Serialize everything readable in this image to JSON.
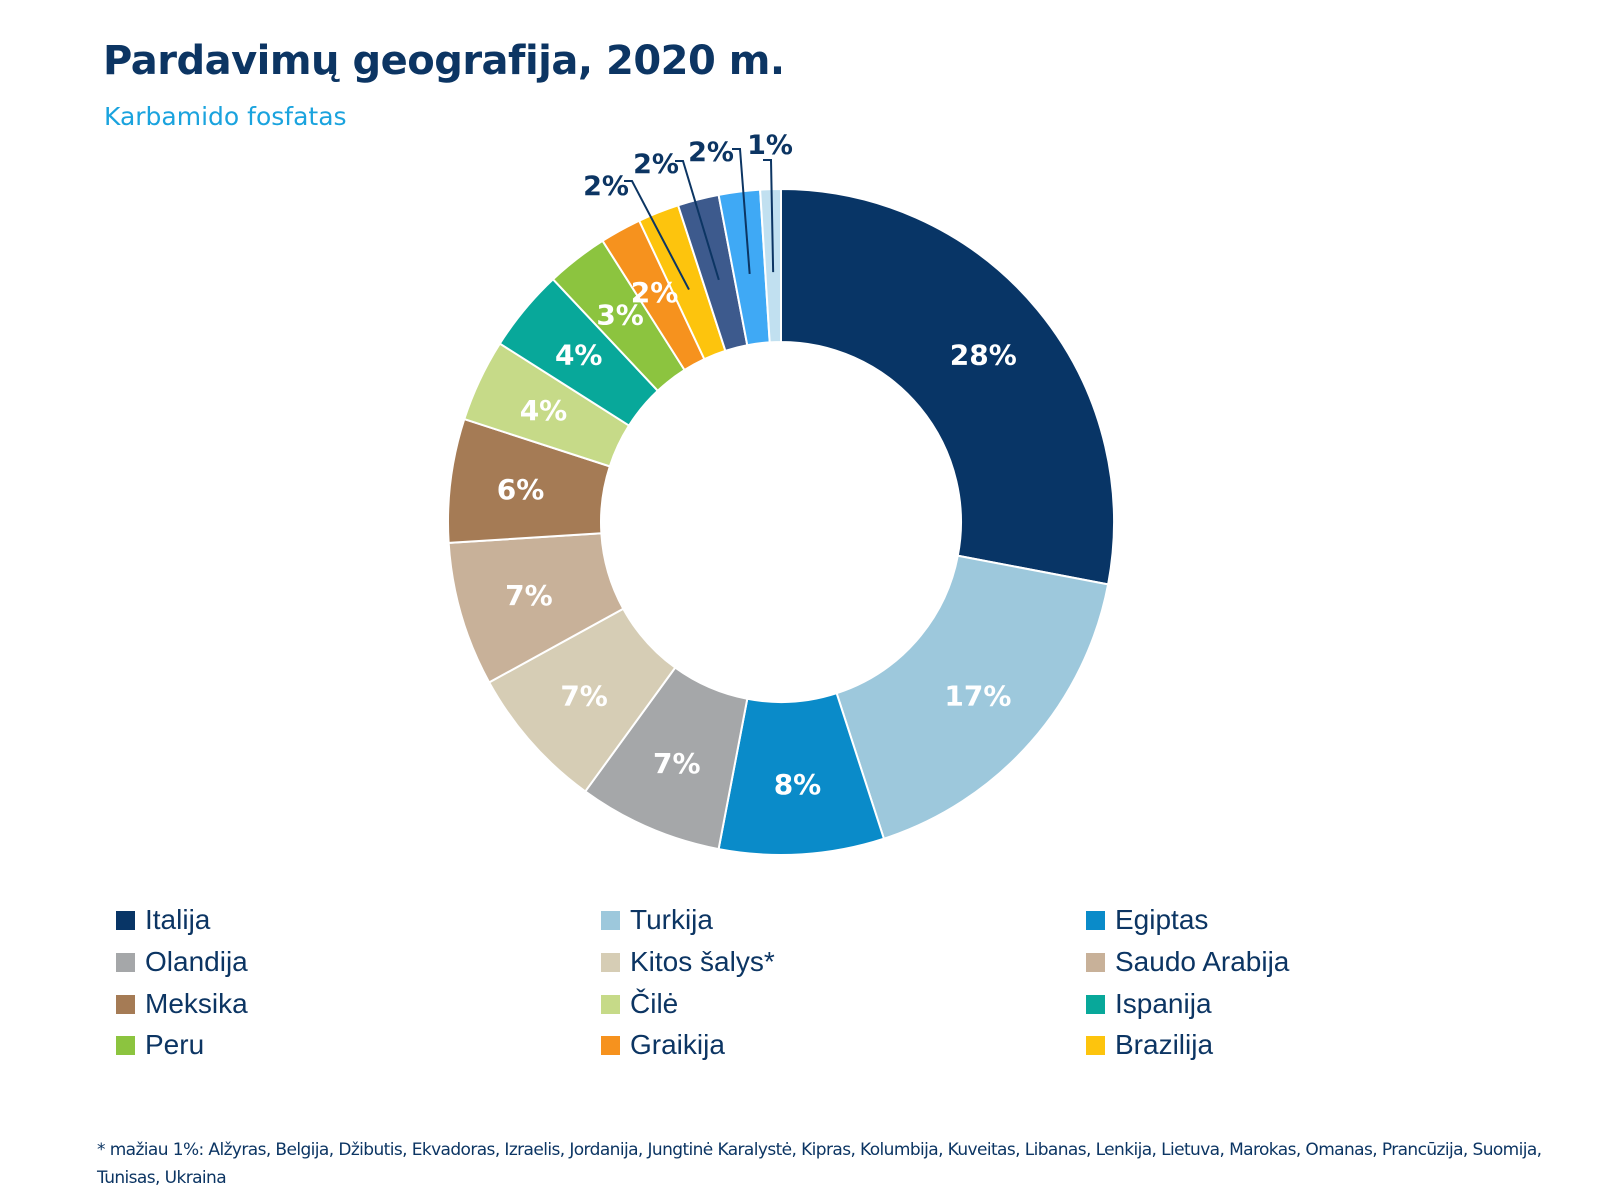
{
  "chart_data": {
    "type": "pie",
    "title": "Pardavimų geografija, 2020 m.",
    "subtitle": "Karbamido fosfatas",
    "categories": [
      "Italija",
      "Turkija",
      "Egiptas",
      "Olandija",
      "Kitos šalys*",
      "Saudo Arabija",
      "Meksika",
      "Čilė",
      "Ispanija",
      "Peru",
      "Graikija",
      "Brazilija",
      "",
      "",
      ""
    ],
    "values": [
      28,
      17,
      8,
      7,
      7,
      7,
      6,
      4,
      4,
      3,
      2,
      2,
      2,
      2,
      1
    ],
    "labels": [
      "28%",
      "17%",
      "8%",
      "7%",
      "7%",
      "7%",
      "6%",
      "4%",
      "4%",
      "3%",
      "2%",
      "2%",
      "2%",
      "2%",
      "1%"
    ],
    "colors": [
      "#083566",
      "#9dc8dc",
      "#0a8bc9",
      "#a5a7a9",
      "#d6cdb5",
      "#c8b199",
      "#a57b55",
      "#c6da88",
      "#08a89a",
      "#8cc43f",
      "#f6921e",
      "#fdc40d",
      "#3d5a8d",
      "#3fa9f5",
      "#c1e0f0"
    ],
    "legend": {
      "items": [
        {
          "label": "Italija",
          "color": "#083566"
        },
        {
          "label": "Turkija",
          "color": "#9dc8dc"
        },
        {
          "label": "Egiptas",
          "color": "#0a8bc9"
        },
        {
          "label": "Olandija",
          "color": "#a5a7a9"
        },
        {
          "label": "Kitos šalys*",
          "color": "#d6cdb5"
        },
        {
          "label": "Saudo Arabija",
          "color": "#c8b199"
        },
        {
          "label": "Meksika",
          "color": "#a57b55"
        },
        {
          "label": "Čilė",
          "color": "#c6da88"
        },
        {
          "label": "Ispanija",
          "color": "#08a89a"
        },
        {
          "label": "Peru",
          "color": "#8cc43f"
        },
        {
          "label": "Graikija",
          "color": "#f6921e"
        },
        {
          "label": "Brazilija",
          "color": "#fdc40d"
        }
      ],
      "placement": "bottom"
    },
    "footnote": "* mažiau 1%: Alžyras, Belgija, Džibutis, Ekvadoras, Izraelis, Jordanija, Jungtinė Karalystė, Kipras, Kolumbija, Kuveitas,  Libanas, Lenkija, Lietuva, Marokas, Omanas, Prancūzija, Suomija, Tunisas, Ukraina"
  }
}
